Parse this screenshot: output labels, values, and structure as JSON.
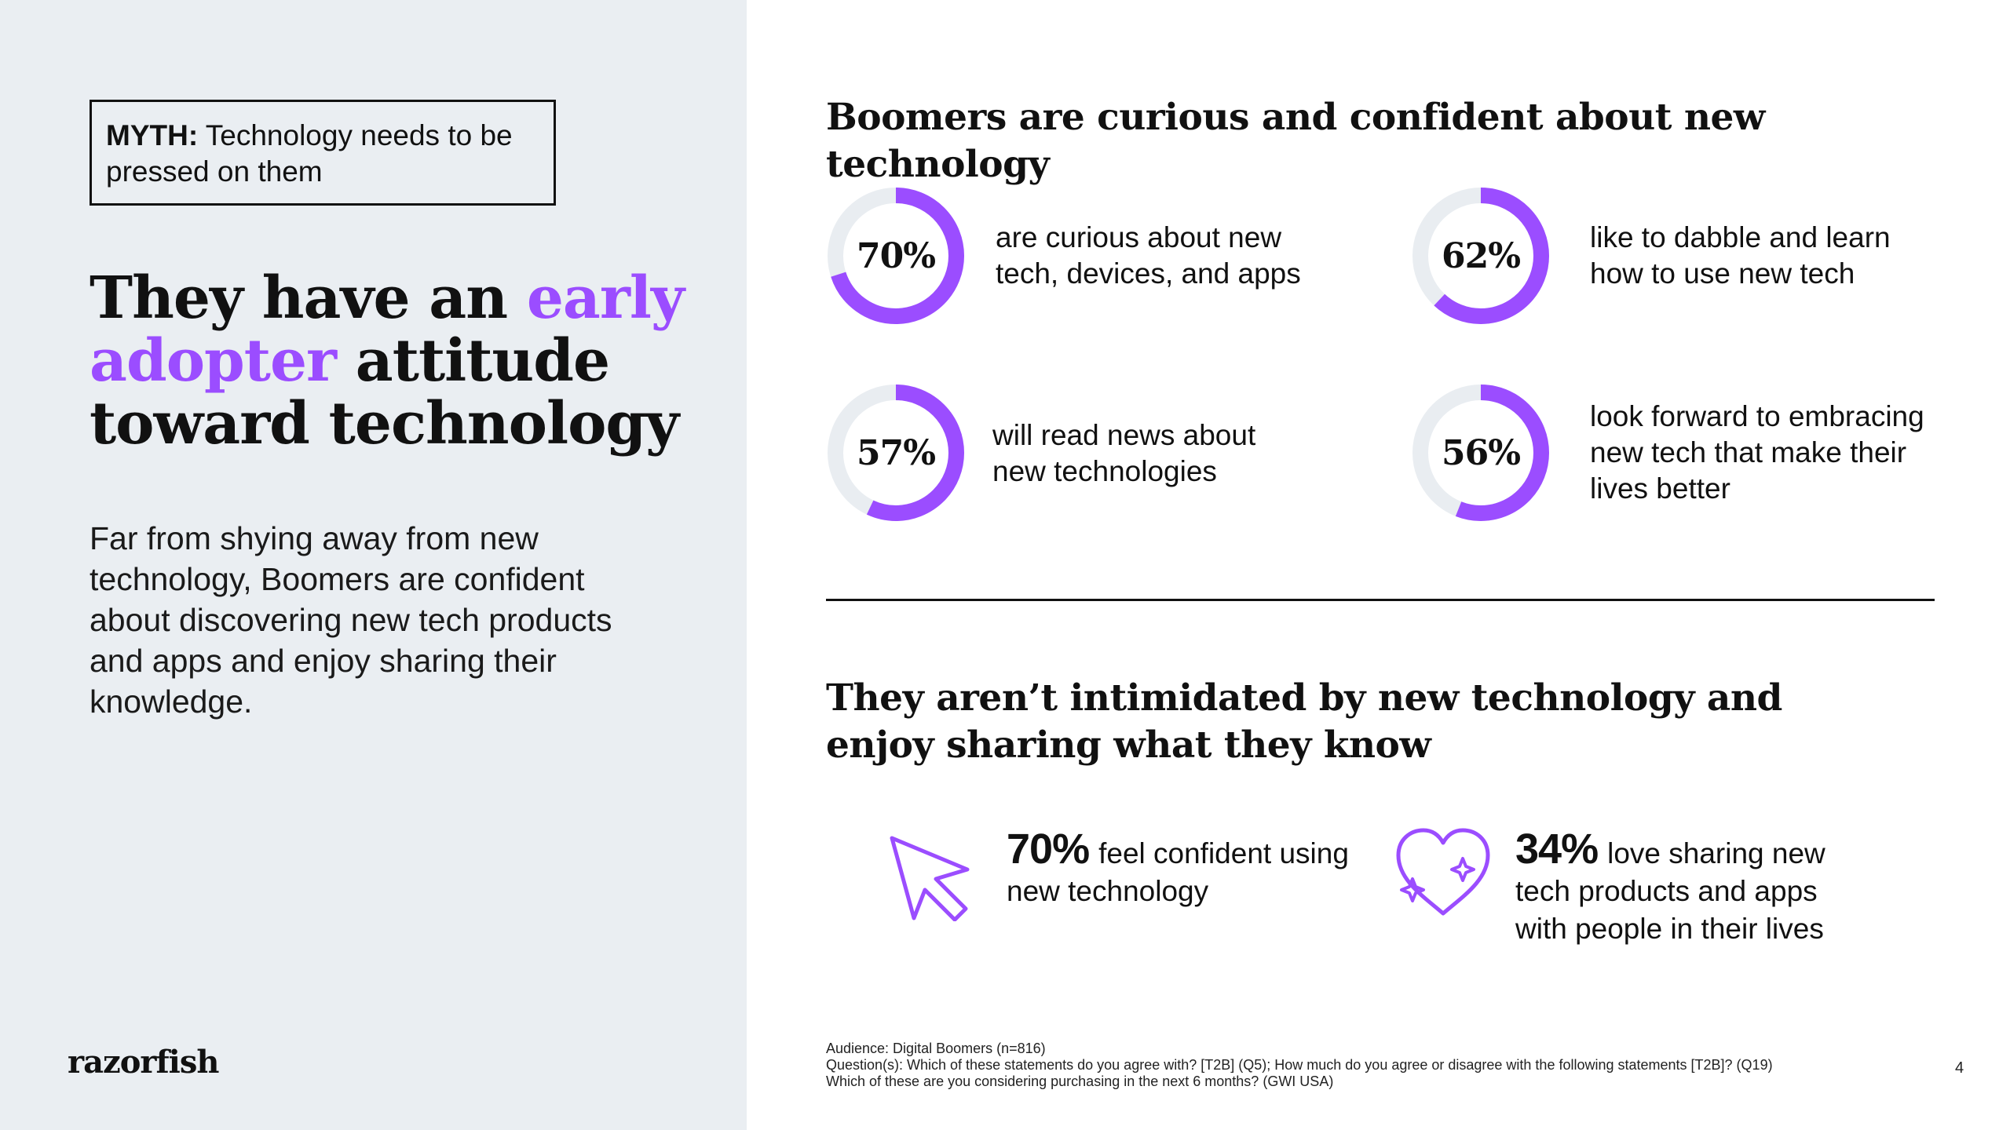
{
  "myth": {
    "label": "MYTH:",
    "text": "Technology needs to be pressed on them"
  },
  "headline": {
    "part1": "They have an ",
    "accent": "early adopter",
    "part2": " attitude toward technology"
  },
  "intro": "Far from shying away from new technology, Boomers are confident about discovering new tech products and apps and enjoy sharing their knowledge.",
  "logo": "razorfish",
  "section1_title": "Boomers are curious and confident about new technology",
  "stats": [
    {
      "value": "70%",
      "fraction": 0.7,
      "text": "are curious about new tech, devices, and apps"
    },
    {
      "value": "62%",
      "fraction": 0.62,
      "text": "like to dabble and learn how to use new tech"
    },
    {
      "value": "57%",
      "fraction": 0.57,
      "text": "will read news about new technologies"
    },
    {
      "value": "56%",
      "fraction": 0.56,
      "text": "look forward to embracing new tech that make their lives better"
    }
  ],
  "section2_title": "They aren’t intimidated by new technology and enjoy sharing what they know",
  "features": [
    {
      "value": "70%",
      "text": "feel confident using new technology",
      "icon": "cursor-icon"
    },
    {
      "value": "34%",
      "text": "love sharing new tech products and apps with people in their lives",
      "icon": "heart-sparkle-icon"
    }
  ],
  "footnote": {
    "audience": "Audience: Digital Boomers (n=816)",
    "questions": "Question(s): Which of these statements do you agree with? [T2B] (Q5); How much do you agree or disagree with the following statements [T2B]? (Q19)",
    "questions2": "Which of these are you considering purchasing in the next 6 months? (GWI USA)"
  },
  "page_number": "4",
  "colors": {
    "accent": "#9b4dff",
    "ring_track": "#e9edf1",
    "left_panel": "#eaeef2",
    "text": "#111111"
  }
}
